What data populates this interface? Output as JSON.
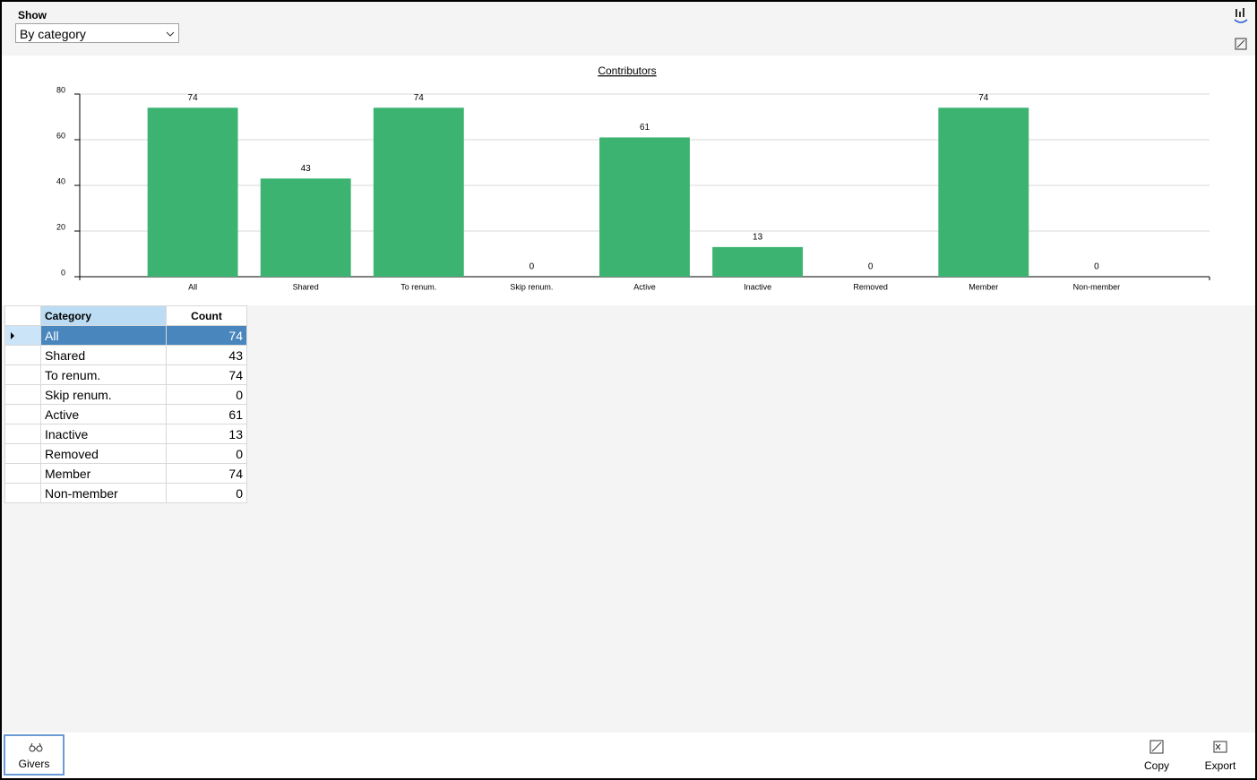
{
  "show_label": "Show",
  "show_select": "By category",
  "chart_data": {
    "type": "bar",
    "title": "Contributors",
    "categories": [
      "All",
      "Shared",
      "To renum.",
      "Skip renum.",
      "Active",
      "Inactive",
      "Removed",
      "Member",
      "Non-member"
    ],
    "values": [
      74,
      43,
      74,
      0,
      61,
      13,
      0,
      74,
      0
    ],
    "color": "#3cb371",
    "ylim": [
      0,
      80
    ],
    "yticks": [
      0,
      20,
      40,
      60,
      80
    ],
    "grid": true
  },
  "table": {
    "columns": [
      "Category",
      "Count"
    ],
    "rows": [
      [
        "All",
        74
      ],
      [
        "Shared",
        43
      ],
      [
        "To renum.",
        74
      ],
      [
        "Skip renum.",
        0
      ],
      [
        "Active",
        61
      ],
      [
        "Inactive",
        13
      ],
      [
        "Removed",
        0
      ],
      [
        "Member",
        74
      ],
      [
        "Non-member",
        0
      ]
    ]
  },
  "buttons": [
    "Givers",
    "Copy",
    "Export"
  ]
}
